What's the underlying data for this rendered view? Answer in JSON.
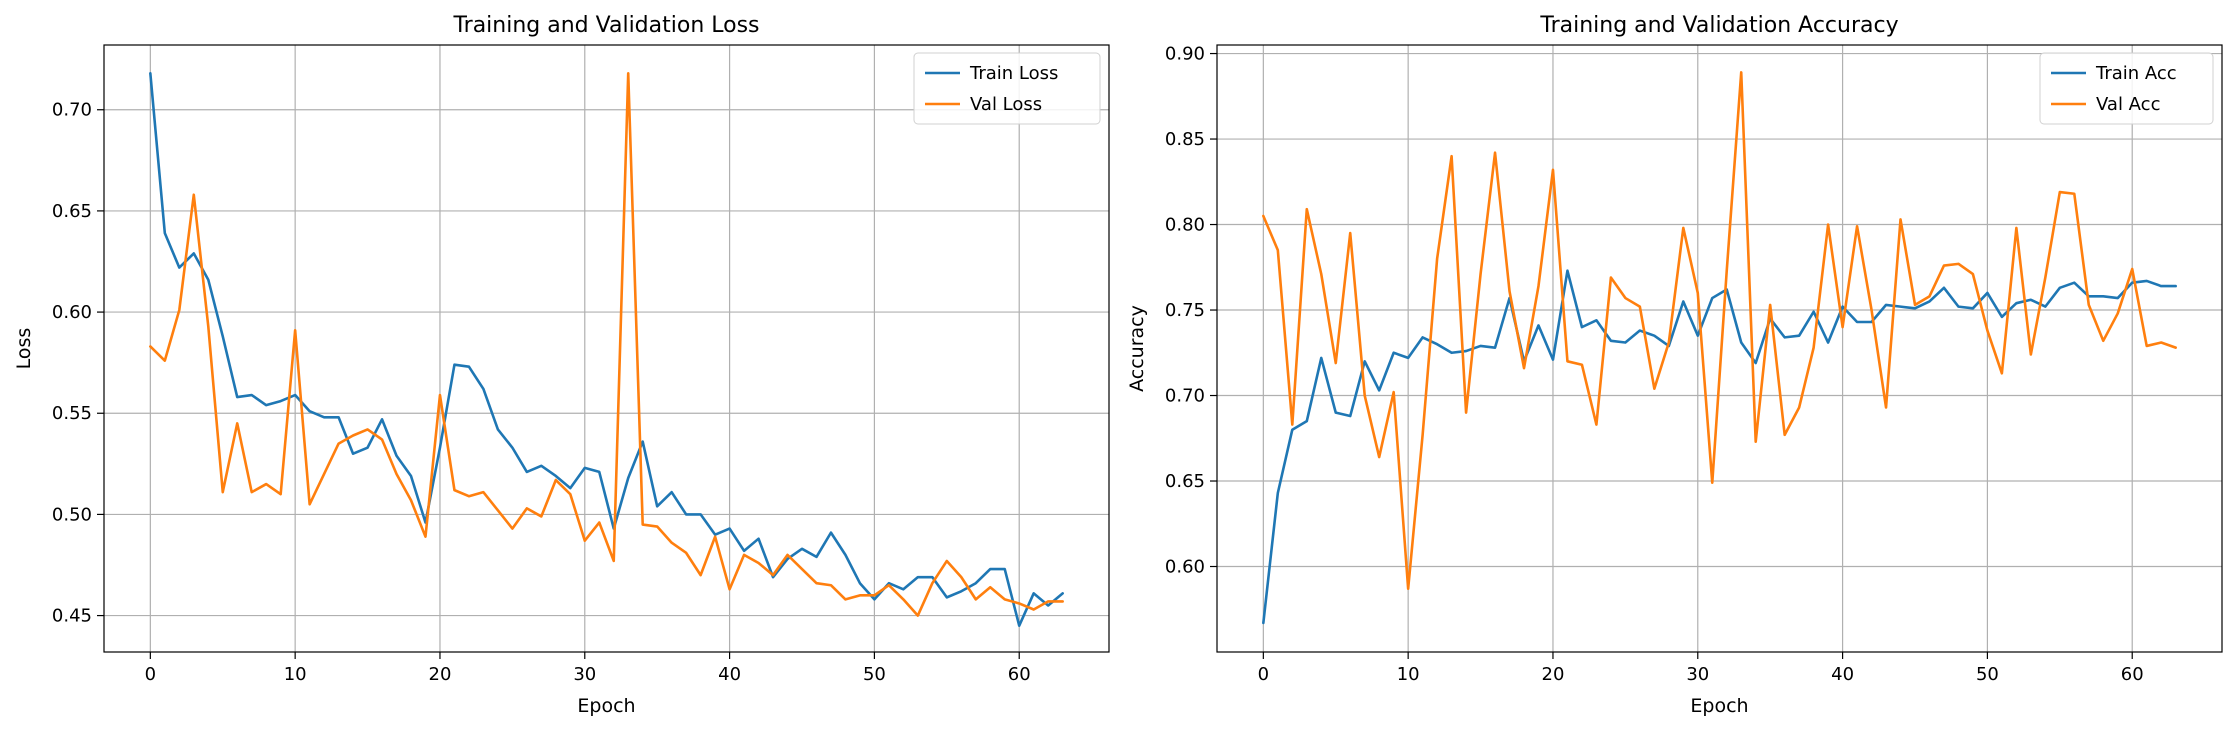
{
  "chart_data": [
    {
      "type": "line",
      "title": "Training and Validation Loss",
      "xlabel": "Epoch",
      "ylabel": "Loss",
      "xlim": [
        -3.2,
        66.2
      ],
      "ylim": [
        0.432,
        0.732
      ],
      "xticks": [
        0,
        10,
        20,
        30,
        40,
        50,
        60
      ],
      "yticks": [
        0.45,
        0.5,
        0.55,
        0.6,
        0.65,
        0.7
      ],
      "ytick_labels": [
        "0.45",
        "0.50",
        "0.55",
        "0.60",
        "0.65",
        "0.70"
      ],
      "grid": true,
      "legend_position": "top-right",
      "series": [
        {
          "name": "Train Loss",
          "color": "#1f77b4",
          "values": [
            0.718,
            0.639,
            0.622,
            0.629,
            0.616,
            0.588,
            0.558,
            0.559,
            0.554,
            0.556,
            0.559,
            0.551,
            0.548,
            0.548,
            0.53,
            0.533,
            0.547,
            0.529,
            0.519,
            0.496,
            0.533,
            0.574,
            0.573,
            0.562,
            0.542,
            0.533,
            0.521,
            0.524,
            0.519,
            0.513,
            0.523,
            0.521,
            0.493,
            0.518,
            0.536,
            0.504,
            0.511,
            0.5,
            0.5,
            0.49,
            0.493,
            0.482,
            0.488,
            0.469,
            0.478,
            0.483,
            0.479,
            0.491,
            0.48,
            0.466,
            0.458,
            0.466,
            0.463,
            0.469,
            0.469,
            0.459,
            0.462,
            0.466,
            0.473,
            0.473,
            0.445,
            0.461,
            0.455,
            0.461
          ]
        },
        {
          "name": "Val Loss",
          "color": "#ff7f0e",
          "values": [
            0.583,
            0.576,
            0.601,
            0.658,
            0.593,
            0.511,
            0.545,
            0.511,
            0.515,
            0.51,
            0.591,
            0.505,
            0.52,
            0.535,
            0.539,
            0.542,
            0.537,
            0.52,
            0.507,
            0.489,
            0.559,
            0.512,
            0.509,
            0.511,
            0.502,
            0.493,
            0.503,
            0.499,
            0.517,
            0.51,
            0.487,
            0.496,
            0.477,
            0.718,
            0.495,
            0.494,
            0.486,
            0.481,
            0.47,
            0.489,
            0.463,
            0.48,
            0.476,
            0.47,
            0.48,
            0.473,
            0.466,
            0.465,
            0.458,
            0.46,
            0.46,
            0.465,
            0.458,
            0.45,
            0.466,
            0.477,
            0.469,
            0.458,
            0.464,
            0.458,
            0.456,
            0.453,
            0.457,
            0.457
          ]
        }
      ]
    },
    {
      "type": "line",
      "title": "Training and Validation Accuracy",
      "xlabel": "Epoch",
      "ylabel": "Accuracy",
      "xlim": [
        -3.2,
        66.2
      ],
      "ylim": [
        0.55,
        0.905
      ],
      "xticks": [
        0,
        10,
        20,
        30,
        40,
        50,
        60
      ],
      "yticks": [
        0.6,
        0.65,
        0.7,
        0.75,
        0.8,
        0.85,
        0.9
      ],
      "ytick_labels": [
        "0.60",
        "0.65",
        "0.70",
        "0.75",
        "0.80",
        "0.85",
        "0.90"
      ],
      "grid": true,
      "legend_position": "top-right",
      "series": [
        {
          "name": "Train Acc",
          "color": "#1f77b4",
          "values": [
            0.567,
            0.643,
            0.68,
            0.685,
            0.722,
            0.69,
            0.688,
            0.72,
            0.703,
            0.725,
            0.722,
            0.734,
            0.73,
            0.725,
            0.726,
            0.729,
            0.728,
            0.757,
            0.72,
            0.741,
            0.721,
            0.773,
            0.74,
            0.744,
            0.732,
            0.731,
            0.738,
            0.735,
            0.729,
            0.755,
            0.735,
            0.757,
            0.762,
            0.731,
            0.719,
            0.745,
            0.734,
            0.735,
            0.749,
            0.731,
            0.752,
            0.743,
            0.743,
            0.753,
            0.752,
            0.751,
            0.755,
            0.763,
            0.752,
            0.751,
            0.76,
            0.746,
            0.754,
            0.756,
            0.752,
            0.763,
            0.766,
            0.758,
            0.758,
            0.757,
            0.766,
            0.767,
            0.764,
            0.764
          ]
        },
        {
          "name": "Val Acc",
          "color": "#ff7f0e",
          "values": [
            0.805,
            0.785,
            0.683,
            0.809,
            0.771,
            0.719,
            0.795,
            0.7,
            0.664,
            0.702,
            0.587,
            0.677,
            0.78,
            0.84,
            0.69,
            0.771,
            0.842,
            0.761,
            0.716,
            0.764,
            0.832,
            0.72,
            0.718,
            0.683,
            0.769,
            0.757,
            0.752,
            0.704,
            0.731,
            0.798,
            0.76,
            0.649,
            0.773,
            0.889,
            0.673,
            0.753,
            0.677,
            0.693,
            0.728,
            0.8,
            0.74,
            0.799,
            0.75,
            0.693,
            0.803,
            0.753,
            0.758,
            0.776,
            0.777,
            0.771,
            0.738,
            0.713,
            0.798,
            0.724,
            0.769,
            0.819,
            0.818,
            0.753,
            0.732,
            0.748,
            0.774,
            0.729,
            0.731,
            0.728
          ]
        }
      ]
    }
  ]
}
